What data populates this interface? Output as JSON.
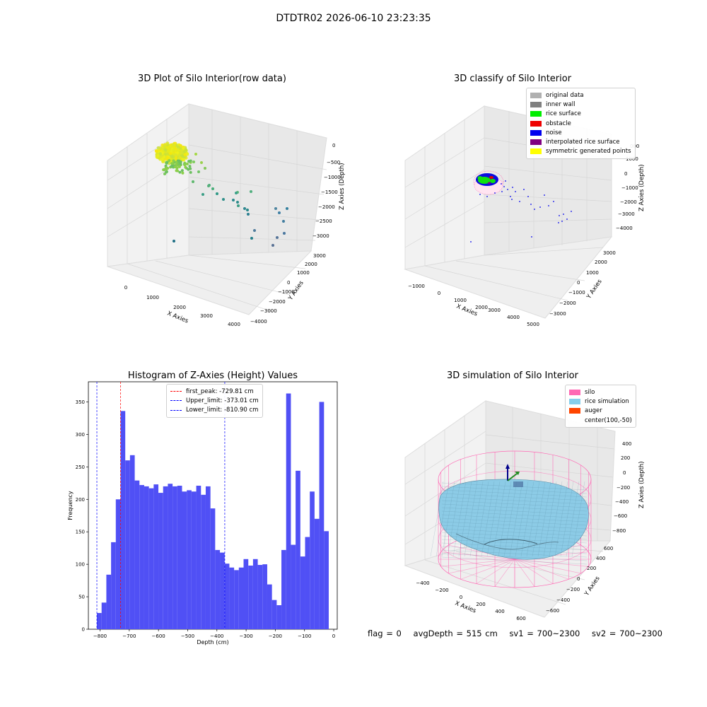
{
  "suptitle": "DTDTR02 2026-06-10 23:23:35",
  "panels": {
    "raw": {
      "title": "3D Plot of Silo Interior(row data)",
      "xlabel": "X Axies",
      "ylabel": "Y Axies",
      "zlabel": "Z Axies (Depth)",
      "xticks": [
        "0",
        "1000",
        "2000",
        "3000",
        "4000"
      ],
      "yticks": [
        "−4000",
        "−3000",
        "−2000",
        "−1000",
        "0",
        "1000",
        "2000",
        "3000"
      ],
      "zticks": [
        "0",
        "−500",
        "−1000",
        "−1500",
        "−2000",
        "−2500",
        "−3000"
      ]
    },
    "classify": {
      "title": "3D classify of Silo Interior",
      "xlabel": "X Axies",
      "ylabel": "Y Axies",
      "zlabel": "Z Axies (Depth)",
      "xticks": [
        "−1000",
        "0",
        "1000",
        "2000",
        "3000",
        "4000",
        "5000"
      ],
      "yticks": [
        "−3000",
        "−2000",
        "−1000",
        "0",
        "1000",
        "2000",
        "3000"
      ],
      "zticks": [
        "1000",
        "0",
        "−1000",
        "−2000",
        "−3000",
        "−4000"
      ],
      "legend": [
        {
          "label": "original data",
          "color": "#b0b0b0"
        },
        {
          "label": "inner wall",
          "color": "#808080"
        },
        {
          "label": "rice surface",
          "color": "#00ee00"
        },
        {
          "label": "obstacle",
          "color": "#ee0000"
        },
        {
          "label": "noise",
          "color": "#0000ee"
        },
        {
          "label": "interpolated rice surface",
          "color": "#800080"
        },
        {
          "label": "symmetric generated points",
          "color": "#ffff00"
        }
      ],
      "extra_tick": "000"
    },
    "simulation": {
      "title": "3D simulation of Silo Interior",
      "xlabel": "X Axies",
      "ylabel": "Y Axies",
      "zlabel": "Z Axies (Depth)",
      "xticks": [
        "−400",
        "−200",
        "0",
        "200",
        "400",
        "600"
      ],
      "yticks": [
        "−600",
        "−400",
        "−200",
        "0",
        "200",
        "400",
        "600"
      ],
      "zticks": [
        "400",
        "200",
        "0",
        "−200",
        "−400",
        "−600",
        "−800"
      ],
      "legend": [
        {
          "label": "silo",
          "color": "#ff69b4"
        },
        {
          "label": "rice simulation",
          "color": "#87ceeb"
        },
        {
          "label": "auger",
          "color": "#ff4500"
        },
        {
          "label": "center(100,-50)",
          "color": ""
        }
      ]
    }
  },
  "histogram": {
    "title": "Histogram of Z-Axies (Height) Values",
    "xlabel": "Depth (cm)",
    "ylabel": "Frequency",
    "legend": [
      {
        "label": "first_peak: -729.81 cm",
        "color": "#ff0000"
      },
      {
        "label": "Upper_limit: -373.01 cm",
        "color": "#0000ff"
      },
      {
        "label": "Lower_limit: -810.90 cm",
        "color": "#0000ff"
      }
    ]
  },
  "chart_data": {
    "type": "bar",
    "title": "Histogram of Z-Axies (Height) Values",
    "xlabel": "Depth (cm)",
    "ylabel": "Frequency",
    "xlim": [
      -840,
      12
    ],
    "ylim": [
      0,
      381
    ],
    "xticks": [
      -800,
      -700,
      -600,
      -500,
      -400,
      -300,
      -200,
      -100,
      0
    ],
    "yticks": [
      0,
      50,
      100,
      150,
      200,
      250,
      300,
      350
    ],
    "bin_start": -810.9,
    "bin_width": 16.2,
    "values": [
      25,
      41,
      84,
      134,
      200,
      336,
      260,
      268,
      229,
      222,
      220,
      217,
      223,
      210,
      220,
      224,
      220,
      221,
      212,
      214,
      212,
      221,
      207,
      220,
      186,
      122,
      118,
      101,
      95,
      91,
      95,
      108,
      98,
      108,
      99,
      100,
      69,
      45,
      37,
      122,
      363,
      130,
      244,
      112,
      142,
      212,
      170,
      350,
      151
    ],
    "color": "#5050f5",
    "vlines": [
      {
        "x": -729.81,
        "label": "first_peak: -729.81 cm",
        "color": "#ff0000"
      },
      {
        "x": -373.01,
        "label": "Upper_limit: -373.01 cm",
        "color": "#0000ff"
      },
      {
        "x": -810.9,
        "label": "Lower_limit: -810.90 cm",
        "color": "#0000ff"
      }
    ]
  },
  "footer": {
    "flag": "flag = 0",
    "avg": "avgDepth = 515 cm",
    "sv1": "sv1 = 700~2300",
    "sv2": "sv2 = 700~2300"
  }
}
